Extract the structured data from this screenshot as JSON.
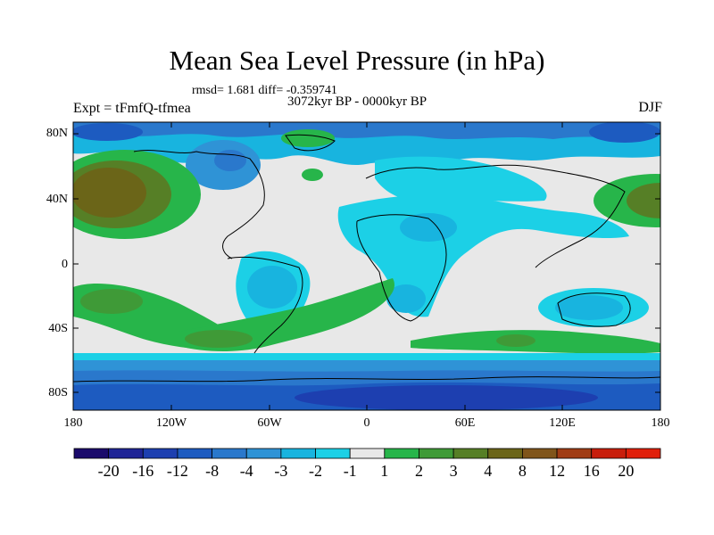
{
  "title": "Mean Sea Level Pressure (in hPa)",
  "stats": "rmsd= 1.681 diff= -0.359741",
  "period": "3072kyr BP - 0000kyr BP",
  "experiment": "Expt = tFmfQ-tfmea",
  "season": "DJF",
  "axes": {
    "y_labels": [
      "80N",
      "40N",
      "0",
      "40S",
      "80S"
    ],
    "x_labels": [
      "180",
      "120W",
      "60W",
      "0",
      "60E",
      "120E",
      "180"
    ]
  },
  "colorbar": {
    "labels": [
      "-20",
      "-16",
      "-12",
      "-8",
      "-4",
      "-3",
      "-2",
      "-1",
      "1",
      "2",
      "3",
      "4",
      "8",
      "12",
      "16",
      "20"
    ],
    "colors": [
      "#1a0a6b",
      "#1f2496",
      "#1d3fb0",
      "#1d5bc0",
      "#2a78cc",
      "#2f93d6",
      "#18b4df",
      "#1cd0e6",
      "#e8e8e8",
      "#27b54a",
      "#3f9a37",
      "#567f26",
      "#6b6518",
      "#80551a",
      "#a03c14",
      "#c81e0c",
      "#e01f0a"
    ]
  }
}
